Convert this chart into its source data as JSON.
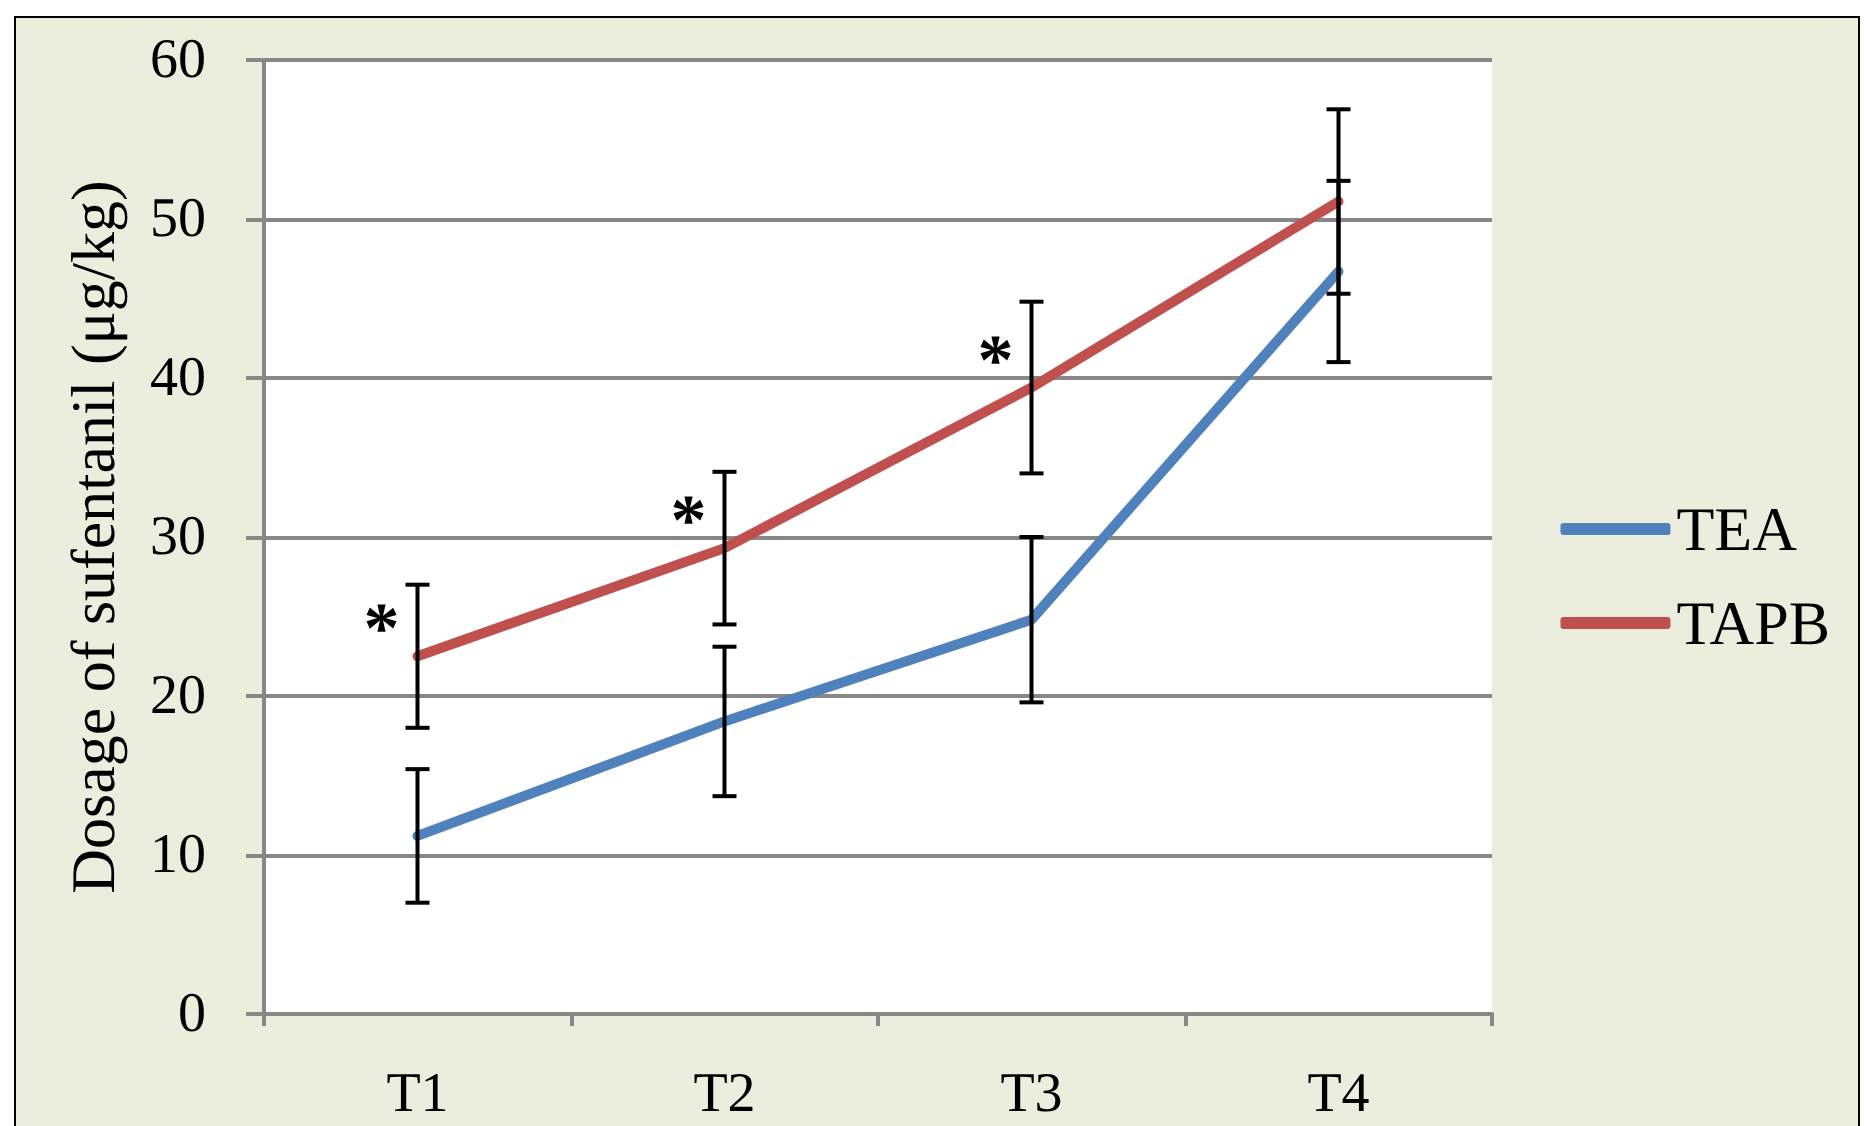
{
  "chart_data": {
    "type": "line",
    "ylabel": "Dosage of sufentanil (μg/kg)",
    "categories": [
      "T1",
      "T2",
      "T3",
      "T4"
    ],
    "series": [
      {
        "name": "TEA",
        "color": "#4f81bd",
        "values": [
          11.2,
          18.4,
          24.8,
          46.7
        ],
        "errors": [
          4.2,
          4.7,
          5.2,
          5.7
        ]
      },
      {
        "name": "TAPB",
        "color": "#c0504d",
        "values": [
          22.5,
          29.3,
          39.4,
          51.1
        ],
        "errors": [
          4.5,
          4.8,
          5.4,
          5.8
        ]
      }
    ],
    "ylim": [
      0,
      60
    ],
    "yticks": [
      0,
      10,
      20,
      30,
      40,
      50,
      60
    ],
    "grid": "y",
    "legend": "right",
    "marker": "none",
    "line_style": "solid",
    "annotations": [
      {
        "text": "*",
        "x": "T1",
        "y": 22.5
      },
      {
        "text": "*",
        "x": "T2",
        "y": 29.3
      },
      {
        "text": "*",
        "x": "T3",
        "y": 39.4
      }
    ]
  }
}
